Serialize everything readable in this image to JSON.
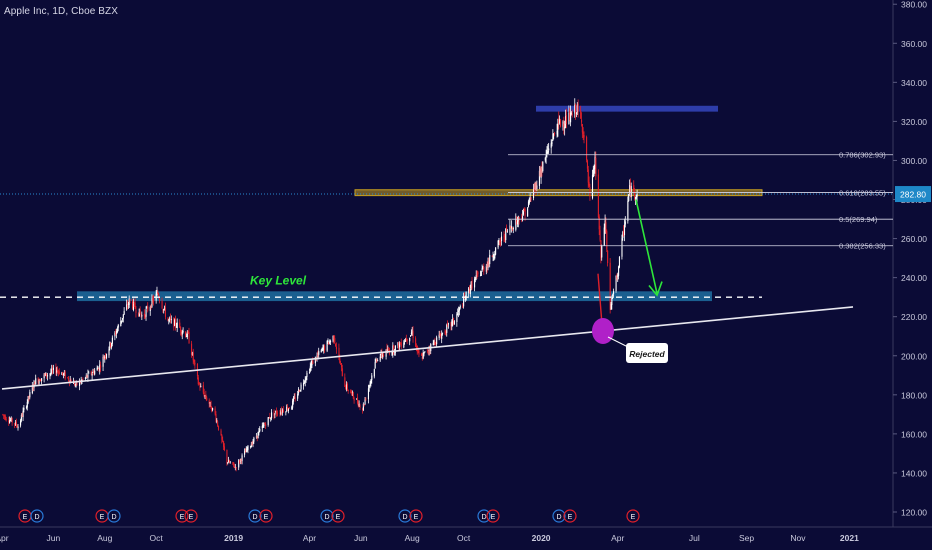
{
  "symbol_title": "Apple Inc, 1D, Cboe BZX",
  "colors": {
    "background": "#0b0b36",
    "candle_up": "#ffffff",
    "candle_down": "#e0202a",
    "axis_text": "#c9c9dc",
    "current_price_bg": "#1e88c8",
    "fib_line": "#d8d8e8",
    "resistance_box": "#3040b0",
    "supply_zone": "#c8a020",
    "key_level_zone": "#1f6fa0",
    "key_level_text": "#2ee63a",
    "trendline": "#e8e8f0",
    "arrow": "#2ee63a",
    "reject_circle": "#b020c8",
    "earnings_e": "#e0202a",
    "dividend_d": "#2a7ad8"
  },
  "chart_data": {
    "type": "candlestick",
    "title": "Apple Inc, 1D, Cboe BZX",
    "y_axis": {
      "ylim": [
        110,
        382
      ],
      "ticks": [
        120,
        140,
        160,
        180,
        200,
        220,
        240,
        260,
        280,
        300,
        320,
        340,
        360,
        380
      ],
      "tick_labels": [
        "120.00",
        "140.00",
        "160.00",
        "180.00",
        "200.00",
        "220.00",
        "240.00",
        "260.00",
        "280.00",
        "300.00",
        "320.00",
        "340.00",
        "360.00",
        "380.00"
      ],
      "current_price_label": "282.80",
      "current_price": 282.8
    },
    "x_axis": {
      "range": [
        "2018-04-01",
        "2021-03-08"
      ],
      "tick_labels": [
        {
          "label": "Apr",
          "date": "2018-04-01"
        },
        {
          "label": "Jun",
          "date": "2018-06-01"
        },
        {
          "label": "Aug",
          "date": "2018-08-01"
        },
        {
          "label": "Oct",
          "date": "2018-10-01"
        },
        {
          "label": "2019",
          "date": "2019-01-01",
          "bold": true
        },
        {
          "label": "Apr",
          "date": "2019-04-01"
        },
        {
          "label": "Jun",
          "date": "2019-06-01"
        },
        {
          "label": "Aug",
          "date": "2019-08-01"
        },
        {
          "label": "Oct",
          "date": "2019-10-01"
        },
        {
          "label": "2020",
          "date": "2020-01-01",
          "bold": true
        },
        {
          "label": "Apr",
          "date": "2020-04-01"
        },
        {
          "label": "Jul",
          "date": "2020-07-01"
        },
        {
          "label": "Sep",
          "date": "2020-09-01"
        },
        {
          "label": "Nov",
          "date": "2020-11-01"
        },
        {
          "label": "2021",
          "date": "2021-01-01",
          "bold": true
        }
      ]
    },
    "price_path": [
      [
        "2018-04-01",
        170
      ],
      [
        "2018-04-20",
        164
      ],
      [
        "2018-05-10",
        187
      ],
      [
        "2018-06-05",
        193
      ],
      [
        "2018-06-28",
        185
      ],
      [
        "2018-07-25",
        194
      ],
      [
        "2018-08-10",
        208
      ],
      [
        "2018-08-30",
        228
      ],
      [
        "2018-09-15",
        220
      ],
      [
        "2018-10-03",
        232
      ],
      [
        "2018-10-15",
        218
      ],
      [
        "2018-10-25",
        216
      ],
      [
        "2018-11-08",
        210
      ],
      [
        "2018-11-20",
        186
      ],
      [
        "2018-12-10",
        170
      ],
      [
        "2018-12-24",
        146
      ],
      [
        "2019-01-03",
        143
      ],
      [
        "2019-01-25",
        157
      ],
      [
        "2019-02-15",
        170
      ],
      [
        "2019-03-10",
        174
      ],
      [
        "2019-04-05",
        197
      ],
      [
        "2019-04-30",
        210
      ],
      [
        "2019-05-13",
        185
      ],
      [
        "2019-06-03",
        173
      ],
      [
        "2019-06-20",
        199
      ],
      [
        "2019-07-15",
        205
      ],
      [
        "2019-08-01",
        212
      ],
      [
        "2019-08-10",
        198
      ],
      [
        "2019-08-25",
        206
      ],
      [
        "2019-09-20",
        218
      ],
      [
        "2019-10-10",
        236
      ],
      [
        "2019-10-30",
        248
      ],
      [
        "2019-11-20",
        263
      ],
      [
        "2019-12-15",
        275
      ],
      [
        "2020-01-05",
        300
      ],
      [
        "2020-01-20",
        318
      ],
      [
        "2020-02-05",
        322
      ],
      [
        "2020-02-12",
        327
      ],
      [
        "2020-02-20",
        316
      ],
      [
        "2020-02-28",
        280
      ],
      [
        "2020-03-05",
        300
      ],
      [
        "2020-03-12",
        250
      ],
      [
        "2020-03-17",
        270
      ],
      [
        "2020-03-23",
        224
      ],
      [
        "2020-04-01",
        243
      ],
      [
        "2020-04-15",
        285
      ],
      [
        "2020-04-24",
        283
      ]
    ],
    "annotations": {
      "fib_levels": [
        {
          "label": "0.786(302.93)",
          "value": 302.93
        },
        {
          "label": "0.618(283.55)",
          "value": 283.55
        },
        {
          "label": "0.5(269.94)",
          "value": 269.94
        },
        {
          "label": "0.382(256.33)",
          "value": 256.33
        }
      ],
      "key_level_label": "Key Level",
      "key_level_zone": [
        228,
        233
      ],
      "key_level_dashed": 230,
      "supply_zone": [
        282,
        285
      ],
      "resistance_box": [
        325,
        328
      ],
      "callout_label": "Rejected",
      "trendline": [
        [
          "2018-04-01",
          183
        ],
        [
          "2020-09-20",
          225
        ]
      ],
      "events": [
        "E",
        "D",
        "E",
        "D",
        "E",
        "E",
        "D",
        "E",
        "D",
        "E",
        "D",
        "E",
        "D",
        "E",
        "D",
        "E"
      ]
    }
  }
}
